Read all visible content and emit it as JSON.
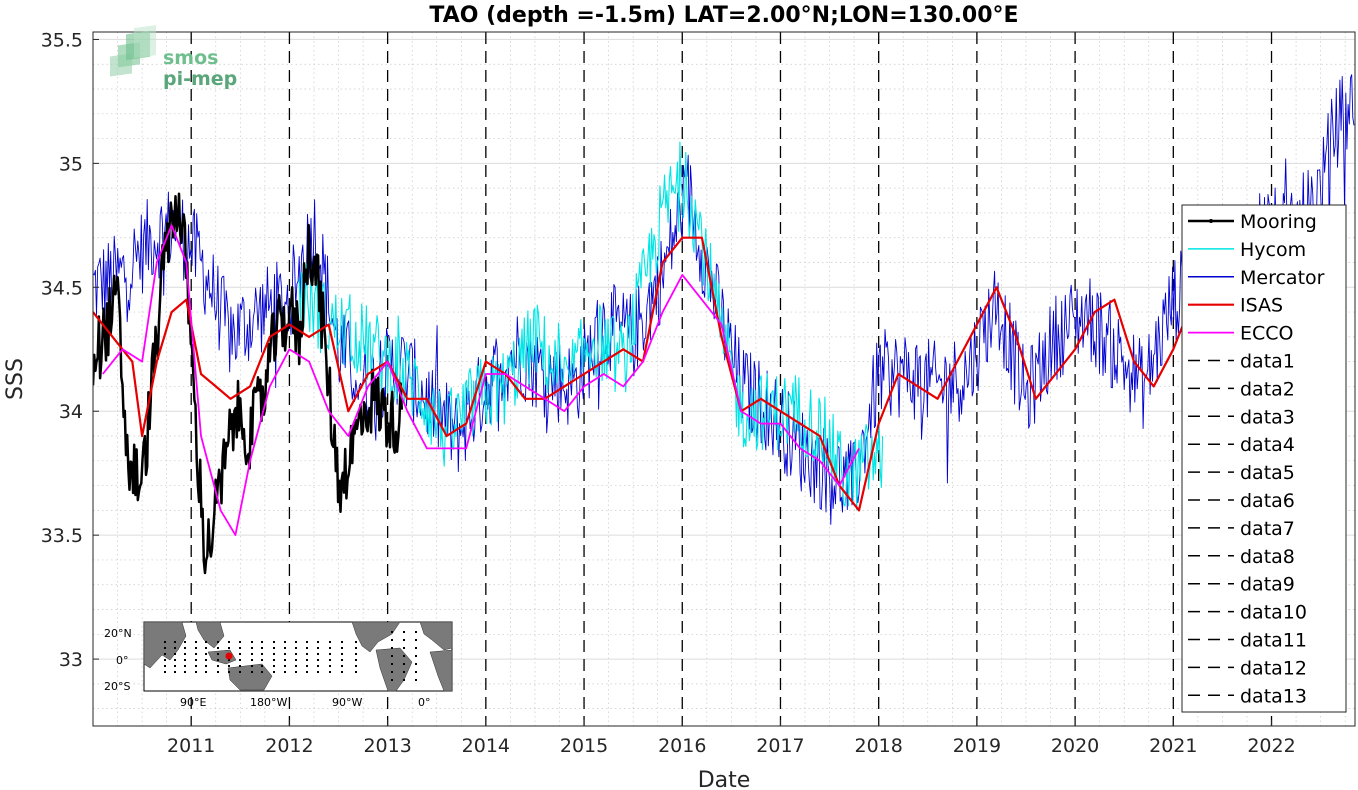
{
  "chart_data": {
    "type": "line",
    "title": "TAO (depth =-1.5m) LAT=2.00°N;LON=130.00°E",
    "xlabel": "Date",
    "ylabel": "SSS",
    "xlim": [
      2010.0,
      2022.85
    ],
    "ylim": [
      32.73,
      35.53
    ],
    "x_ticks": [
      2011,
      2012,
      2013,
      2014,
      2015,
      2016,
      2017,
      2018,
      2019,
      2020,
      2021,
      2022
    ],
    "x_tick_labels": [
      "2011",
      "2012",
      "2013",
      "2014",
      "2015",
      "2016",
      "2017",
      "2018",
      "2019",
      "2020",
      "2021",
      "2022"
    ],
    "y_ticks": [
      33,
      33.5,
      34,
      34.5,
      35,
      35.5
    ],
    "y_tick_labels": [
      "33",
      "33.5",
      "34",
      "34.5",
      "35",
      "35.5"
    ],
    "grid": true,
    "legend_position": "right",
    "vertical_lines_x": [
      2011,
      2012,
      2013,
      2014,
      2015,
      2016,
      2017,
      2018,
      2019,
      2020,
      2021,
      2022
    ],
    "series": [
      {
        "name": "Mooring",
        "color": "#000000",
        "width": 2.5,
        "noise": 0.14,
        "x": [
          2010.0,
          2010.15,
          2010.25,
          2010.35,
          2010.5,
          2010.65,
          2010.75,
          2010.85,
          2010.95,
          2011.05,
          2011.15,
          2011.3,
          2011.45,
          2011.6,
          2011.75,
          2011.85,
          2012.0,
          2012.1,
          2012.2,
          2012.3,
          2012.4,
          2012.5,
          2012.6,
          2012.75,
          2012.85,
          2012.95,
          2013.05,
          2013.15
        ],
        "y": [
          34.2,
          34.35,
          34.45,
          33.8,
          33.7,
          34.3,
          34.7,
          34.85,
          34.6,
          33.9,
          33.4,
          33.7,
          34.0,
          33.9,
          34.1,
          34.3,
          34.4,
          34.3,
          34.7,
          34.5,
          34.1,
          33.7,
          33.8,
          34.0,
          34.05,
          34.0,
          33.95,
          34.0
        ]
      },
      {
        "name": "Hycom",
        "color": "#00e5e5",
        "width": 1.1,
        "noise": 0.16,
        "x": [
          2012.1,
          2012.4,
          2012.7,
          2013.0,
          2013.3,
          2013.6,
          2013.9,
          2014.2,
          2014.5,
          2014.8,
          2015.1,
          2015.4,
          2015.6,
          2015.8,
          2016.0,
          2016.2,
          2016.4,
          2016.6,
          2016.9,
          2017.2,
          2017.45,
          2017.7,
          2017.85,
          2018.05
        ],
        "y": [
          34.5,
          34.35,
          34.3,
          34.2,
          34.1,
          33.9,
          34.05,
          34.1,
          34.3,
          34.1,
          34.3,
          34.2,
          34.5,
          34.8,
          34.95,
          34.7,
          34.3,
          34.0,
          34.0,
          34.0,
          33.9,
          33.7,
          33.8,
          33.8
        ]
      },
      {
        "name": "Mercator",
        "color": "#0000d0",
        "width": 0.9,
        "noise": 0.18,
        "x": [
          2010.0,
          2010.3,
          2010.6,
          2010.85,
          2011.1,
          2011.4,
          2011.7,
          2012.0,
          2012.25,
          2012.5,
          2012.8,
          2013.1,
          2013.4,
          2013.7,
          2014.0,
          2014.3,
          2014.6,
          2014.9,
          2015.2,
          2015.5,
          2015.8,
          2016.05,
          2016.3,
          2016.6,
          2016.9,
          2017.2,
          2017.5,
          2017.75,
          2018.0,
          2018.3,
          2018.6,
          2018.9,
          2019.2,
          2019.5,
          2019.8,
          2020.1,
          2020.4,
          2020.7,
          2021.0,
          2021.3,
          2021.6,
          2021.9,
          2022.2,
          2022.5,
          2022.65,
          2022.85
        ],
        "y": [
          34.5,
          34.55,
          34.7,
          34.75,
          34.6,
          34.3,
          34.4,
          34.45,
          34.75,
          34.25,
          34.1,
          34.2,
          34.05,
          33.9,
          34.1,
          34.25,
          34.15,
          34.1,
          34.35,
          34.3,
          34.55,
          34.9,
          34.5,
          34.1,
          34.0,
          33.85,
          33.75,
          33.7,
          34.15,
          34.15,
          34.1,
          34.15,
          34.45,
          34.05,
          34.3,
          34.4,
          34.25,
          34.1,
          34.45,
          34.55,
          34.5,
          34.75,
          34.7,
          34.9,
          35.15,
          35.25
        ]
      },
      {
        "name": "ISAS",
        "color": "#e60000",
        "width": 2.2,
        "noise": 0.06,
        "x": [
          2010.0,
          2010.2,
          2010.4,
          2010.5,
          2010.65,
          2010.8,
          2010.95,
          2011.1,
          2011.25,
          2011.4,
          2011.6,
          2011.8,
          2012.0,
          2012.2,
          2012.4,
          2012.6,
          2012.8,
          2013.0,
          2013.2,
          2013.4,
          2013.6,
          2013.8,
          2014.0,
          2014.2,
          2014.4,
          2014.6,
          2014.8,
          2015.0,
          2015.2,
          2015.4,
          2015.6,
          2015.8,
          2016.0,
          2016.2,
          2016.4,
          2016.6,
          2016.8,
          2017.0,
          2017.2,
          2017.4,
          2017.6,
          2017.8,
          2018.0,
          2018.2,
          2018.4,
          2018.6,
          2018.8,
          2019.0,
          2019.2,
          2019.4,
          2019.6,
          2019.8,
          2020.0,
          2020.2,
          2020.4,
          2020.6,
          2020.8,
          2021.0,
          2021.1
        ],
        "y": [
          34.4,
          34.3,
          34.2,
          33.9,
          34.2,
          34.4,
          34.45,
          34.15,
          34.1,
          34.05,
          34.1,
          34.3,
          34.35,
          34.3,
          34.35,
          34.0,
          34.15,
          34.2,
          34.05,
          34.05,
          33.9,
          33.95,
          34.2,
          34.15,
          34.05,
          34.05,
          34.1,
          34.15,
          34.2,
          34.25,
          34.2,
          34.6,
          34.7,
          34.7,
          34.3,
          34.0,
          34.05,
          34.0,
          33.95,
          33.9,
          33.7,
          33.6,
          33.95,
          34.15,
          34.1,
          34.05,
          34.2,
          34.35,
          34.5,
          34.3,
          34.05,
          34.15,
          34.25,
          34.4,
          34.45,
          34.2,
          34.1,
          34.25,
          34.35
        ]
      },
      {
        "name": "ECCO",
        "color": "#ff00ff",
        "width": 1.8,
        "noise": 0.05,
        "x": [
          2010.1,
          2010.3,
          2010.5,
          2010.65,
          2010.8,
          2010.95,
          2011.1,
          2011.3,
          2011.45,
          2011.6,
          2011.8,
          2012.0,
          2012.2,
          2012.4,
          2012.6,
          2012.8,
          2013.0,
          2013.2,
          2013.4,
          2013.6,
          2013.8,
          2014.0,
          2014.2,
          2014.4,
          2014.6,
          2014.8,
          2015.0,
          2015.2,
          2015.4,
          2015.6,
          2015.8,
          2016.0,
          2016.2,
          2016.4,
          2016.6,
          2016.8,
          2017.0,
          2017.2,
          2017.4,
          2017.6,
          2017.8
        ],
        "y": [
          34.15,
          34.25,
          34.2,
          34.6,
          34.75,
          34.6,
          33.9,
          33.6,
          33.5,
          33.8,
          34.1,
          34.25,
          34.2,
          34.0,
          33.9,
          34.1,
          34.2,
          34.0,
          33.85,
          33.85,
          33.85,
          34.15,
          34.15,
          34.1,
          34.05,
          34.0,
          34.1,
          34.15,
          34.1,
          34.2,
          34.4,
          34.55,
          34.45,
          34.35,
          34.0,
          33.95,
          33.95,
          33.85,
          33.8,
          33.7,
          33.85
        ]
      }
    ],
    "legend_entries": [
      "Mooring",
      "Hycom",
      "Mercator",
      "ISAS",
      "ECCO",
      "data1",
      "data2",
      "data3",
      "data4",
      "data5",
      "data6",
      "data7",
      "data8",
      "data9",
      "data10",
      "data11",
      "data12",
      "data13"
    ],
    "inset_map": {
      "lat_labels": [
        "20°N",
        "0°",
        "20°S"
      ],
      "lon_labels": [
        "90°E",
        "180°W",
        "90°W",
        "0°"
      ]
    },
    "logo": {
      "line1": "smos",
      "line2": "pi-mep"
    }
  }
}
